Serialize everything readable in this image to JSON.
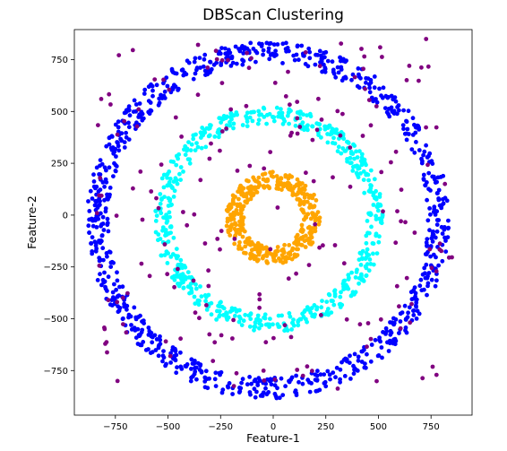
{
  "chart_data": {
    "type": "scatter",
    "title": "DBScan Clustering",
    "xlabel": "Feature-1",
    "ylabel": "Feature-2",
    "xlim": [
      -945,
      945
    ],
    "ylim": [
      -965,
      895
    ],
    "xticks": [
      -750,
      -500,
      -250,
      0,
      250,
      500,
      750
    ],
    "yticks": [
      -750,
      -500,
      -250,
      0,
      250,
      500,
      750
    ],
    "xtick_labels": [
      "−750",
      "−500",
      "−250",
      "0",
      "250",
      "500",
      "750"
    ],
    "ytick_labels": [
      "−750",
      "−500",
      "−250",
      "0",
      "250",
      "500",
      "750"
    ],
    "grid": false,
    "legend": "none",
    "series": [
      {
        "color": "#0000ff",
        "shape": "ring",
        "center": [
          -25,
          -25
        ],
        "radius_range": [
          760,
          860
        ],
        "count": 900
      },
      {
        "color": "#00ffff",
        "shape": "ring",
        "center": [
          -20,
          -20
        ],
        "radius_range": [
          460,
          545
        ],
        "count": 600
      },
      {
        "color": "#ffa500",
        "shape": "ring",
        "center": [
          0,
          -15
        ],
        "radius_range": [
          140,
          225
        ],
        "count": 400
      },
      {
        "color": "#800080",
        "shape": "uniform",
        "x_range": [
          -850,
          850
        ],
        "y_range": [
          -850,
          850
        ],
        "count": 200
      }
    ]
  }
}
